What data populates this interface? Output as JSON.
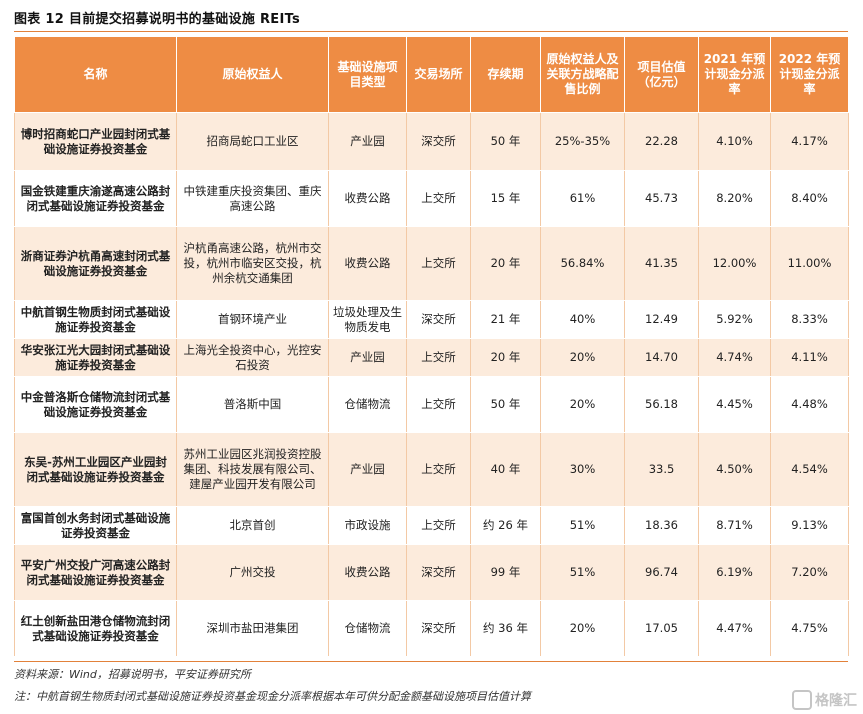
{
  "title": "图表 12   目前提交招募说明书的基础设施 REITs",
  "headers": [
    "名称",
    "原始权益人",
    "基础设施项目类型",
    "交易场所",
    "存续期",
    "原始权益人及关联方战略配售比例",
    "项目估值（亿元）",
    "2021 年预计现金分派率",
    "2022 年预计现金分派率"
  ],
  "rows": [
    [
      "博时招商蛇口产业园封闭式基础设施证券投资基金",
      "招商局蛇口工业区",
      "产业园",
      "深交所",
      "50 年",
      "25%-35%",
      "22.28",
      "4.10%",
      "4.17%"
    ],
    [
      "国金铁建重庆渝遂高速公路封闭式基础设施证券投资基金",
      "中铁建重庆投资集团、重庆高速公路",
      "收费公路",
      "上交所",
      "15 年",
      "61%",
      "45.73",
      "8.20%",
      "8.40%"
    ],
    [
      "浙商证券沪杭甬高速封闭式基础设施证券投资基金",
      "沪杭甬高速公路，杭州市交投，杭州市临安区交投，杭州余杭交通集团",
      "收费公路",
      "上交所",
      "20 年",
      "56.84%",
      "41.35",
      "12.00%",
      "11.00%"
    ],
    [
      "中航首钢生物质封闭式基础设施证券投资基金",
      "首钢环境产业",
      "垃圾处理及生物质发电",
      "深交所",
      "21 年",
      "40%",
      "12.49",
      "5.92%",
      "8.33%"
    ],
    [
      "华安张江光大园封闭式基础设施证券投资基金",
      "上海光全投资中心，光控安石投资",
      "产业园",
      "上交所",
      "20 年",
      "20%",
      "14.70",
      "4.74%",
      "4.11%"
    ],
    [
      "中金普洛斯仓储物流封闭式基础设施证券投资基金",
      "普洛斯中国",
      "仓储物流",
      "上交所",
      "50 年",
      "20%",
      "56.18",
      "4.45%",
      "4.48%"
    ],
    [
      "东吴-苏州工业园区产业园封闭式基础设施证券投资基金",
      "苏州工业园区兆润投资控股集团、科技发展有限公司、建屋产业园开发有限公司",
      "产业园",
      "上交所",
      "40 年",
      "30%",
      "33.5",
      "4.50%",
      "4.54%"
    ],
    [
      "富国首创水务封闭式基础设施证券投资基金",
      "北京首创",
      "市政设施",
      "上交所",
      "约 26 年",
      "51%",
      "18.36",
      "8.71%",
      "9.13%"
    ],
    [
      "平安广州交投广河高速公路封闭式基础设施证券投资基金",
      "广州交投",
      "收费公路",
      "深交所",
      "99 年",
      "51%",
      "96.74",
      "6.19%",
      "7.20%"
    ],
    [
      "红土创新盐田港仓储物流封闭式基础设施证券投资基金",
      "深圳市盐田港集团",
      "仓储物流",
      "深交所",
      "约 36 年",
      "20%",
      "17.05",
      "4.47%",
      "4.75%"
    ]
  ],
  "source": "资料来源：Wind，招募说明书，平安证券研究所",
  "note": "注：中航首钢生物质封闭式基础设施证券投资基金现金分派率根据本年可供分配金额基础设施项目估值计算",
  "watermark": "格隆汇"
}
